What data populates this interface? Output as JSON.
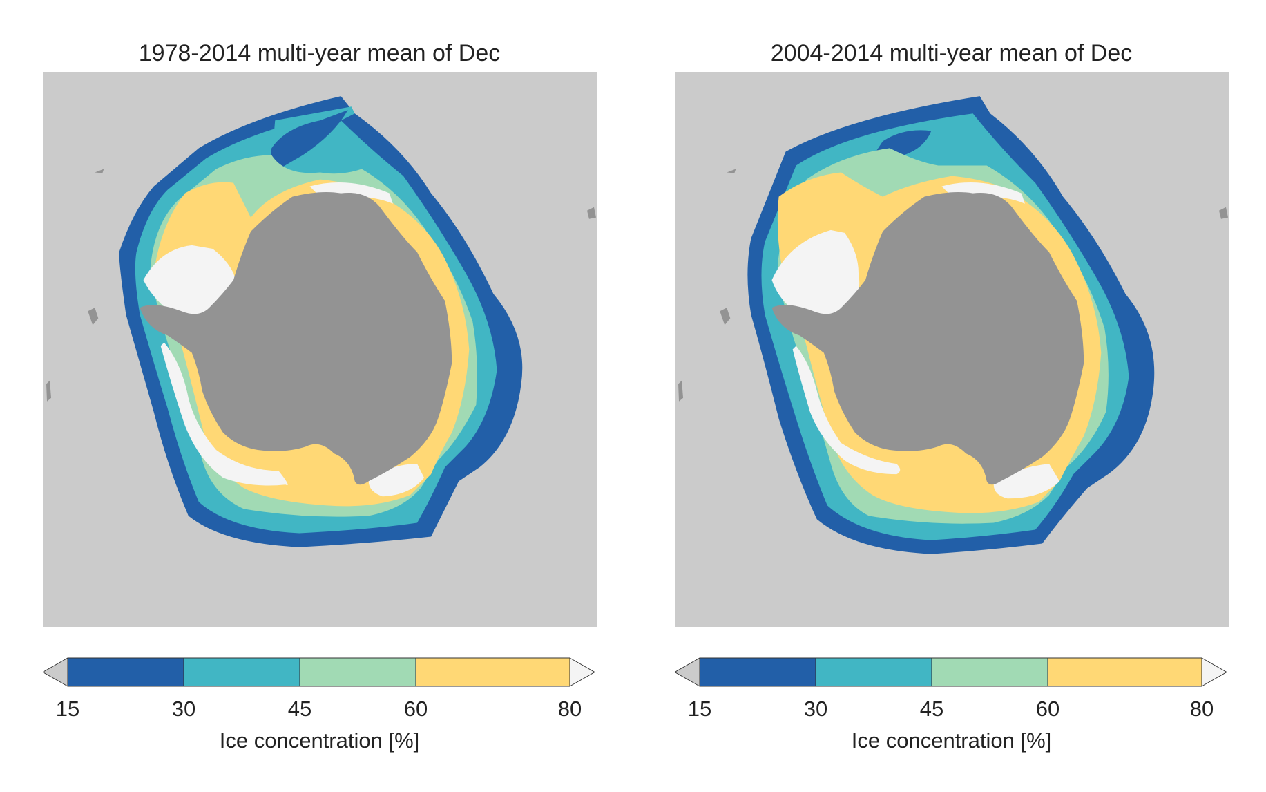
{
  "colors": {
    "background": "#cbcbcb",
    "land": "#939393",
    "below_15": "#cbcbcb",
    "c15_30": "#225fa8",
    "c30_45": "#41b6c4",
    "c45_60": "#a1dab4",
    "c60_80": "#ffd875",
    "above_80": "#f4f4f4"
  },
  "colorbar": {
    "ticks": [
      "15",
      "30",
      "45",
      "60",
      "80"
    ],
    "label": "Ice concentration [%]",
    "bounds": [
      15,
      30,
      45,
      60,
      80
    ],
    "extend": "both"
  },
  "panels": [
    {
      "title": "1978-2014 multi-year mean of Dec"
    },
    {
      "title": "2004-2014 multi-year mean of Dec"
    }
  ]
}
